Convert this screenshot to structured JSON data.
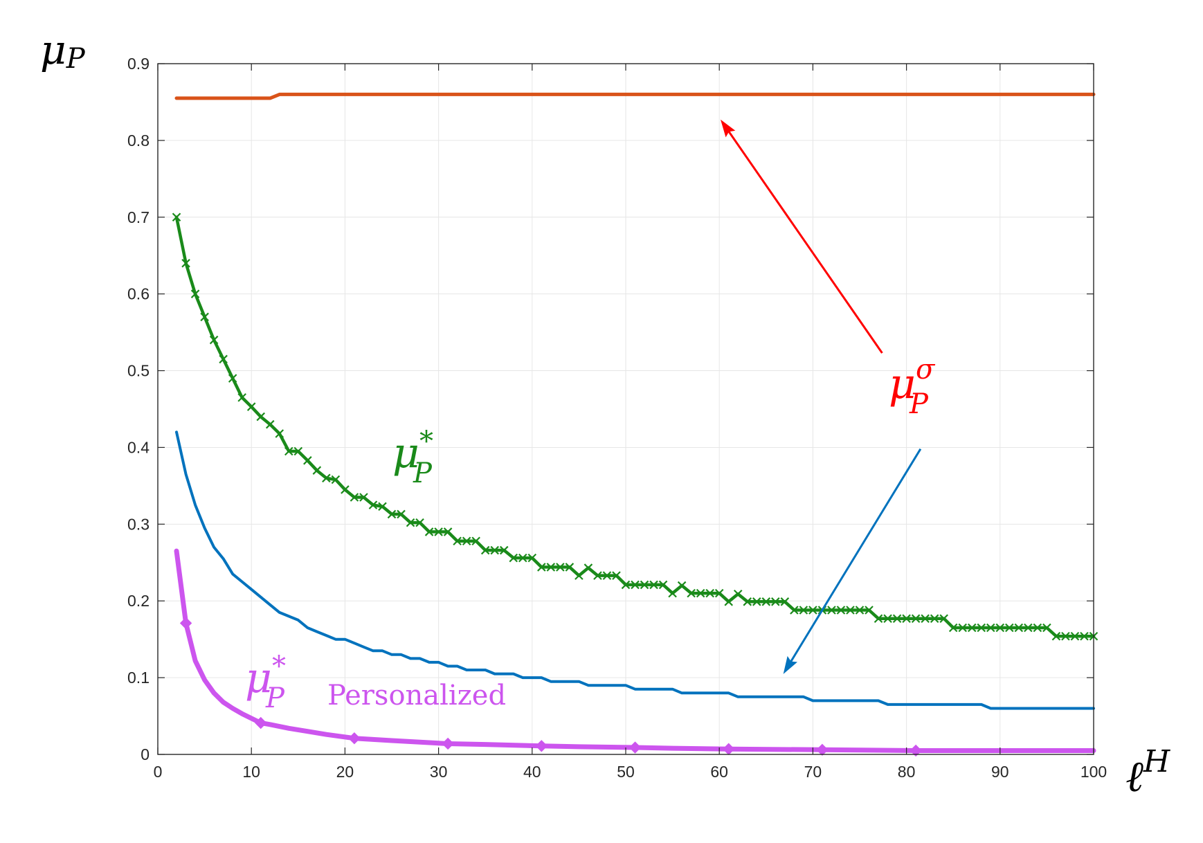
{
  "chart_data": {
    "type": "line",
    "xlabel": "ℓ",
    "xlabel_sup": "H",
    "ylabel": "μ",
    "ylabel_sub": "P",
    "xlim": [
      0,
      100
    ],
    "ylim": [
      0,
      0.9
    ],
    "x_ticks": [
      "0",
      "10",
      "20",
      "30",
      "40",
      "50",
      "60",
      "70",
      "80",
      "90",
      "100"
    ],
    "y_ticks": [
      "0",
      "0.1",
      "0.2",
      "0.3",
      "0.4",
      "0.5",
      "0.6",
      "0.7",
      "0.8",
      "0.9"
    ],
    "grid": true,
    "colors": {
      "orange": "#D95319",
      "green": "#1A8A1A",
      "blue": "#0072BD",
      "magenta": "#CC55EE",
      "red": "#FF0000"
    },
    "series": [
      {
        "color": "orange",
        "points": [
          [
            2,
            0.855
          ],
          [
            12,
            0.855
          ],
          [
            13,
            0.86
          ],
          [
            100,
            0.86
          ]
        ]
      },
      {
        "color": "green",
        "marker": "x",
        "points": [
          [
            2,
            0.7
          ],
          [
            3,
            0.64
          ],
          [
            4,
            0.6
          ],
          [
            5,
            0.57
          ],
          [
            6,
            0.54
          ],
          [
            7,
            0.515
          ],
          [
            8,
            0.49
          ],
          [
            9,
            0.465
          ],
          [
            10,
            0.453
          ],
          [
            11,
            0.44
          ],
          [
            12,
            0.43
          ],
          [
            13,
            0.418
          ],
          [
            14,
            0.395
          ],
          [
            15,
            0.395
          ],
          [
            16,
            0.383
          ],
          [
            17,
            0.37
          ],
          [
            18,
            0.36
          ],
          [
            19,
            0.358
          ],
          [
            20,
            0.345
          ],
          [
            21,
            0.335
          ],
          [
            22,
            0.335
          ],
          [
            23,
            0.325
          ],
          [
            24,
            0.323
          ],
          [
            25,
            0.313
          ],
          [
            26,
            0.313
          ],
          [
            27,
            0.302
          ],
          [
            28,
            0.302
          ],
          [
            29,
            0.29
          ],
          [
            30,
            0.29
          ],
          [
            31,
            0.29
          ],
          [
            32,
            0.278
          ],
          [
            33,
            0.278
          ],
          [
            34,
            0.278
          ],
          [
            35,
            0.266
          ],
          [
            36,
            0.266
          ],
          [
            37,
            0.266
          ],
          [
            38,
            0.256
          ],
          [
            39,
            0.256
          ],
          [
            40,
            0.256
          ],
          [
            41,
            0.244
          ],
          [
            42,
            0.244
          ],
          [
            43,
            0.244
          ],
          [
            44,
            0.244
          ],
          [
            45,
            0.233
          ],
          [
            46,
            0.243
          ],
          [
            47,
            0.233
          ],
          [
            48,
            0.233
          ],
          [
            49,
            0.233
          ],
          [
            50,
            0.221
          ],
          [
            51,
            0.221
          ],
          [
            52,
            0.221
          ],
          [
            53,
            0.221
          ],
          [
            54,
            0.221
          ],
          [
            55,
            0.21
          ],
          [
            56,
            0.22
          ],
          [
            57,
            0.21
          ],
          [
            58,
            0.21
          ],
          [
            59,
            0.21
          ],
          [
            60,
            0.21
          ],
          [
            61,
            0.199
          ],
          [
            62,
            0.209
          ],
          [
            63,
            0.199
          ],
          [
            64,
            0.199
          ],
          [
            65,
            0.199
          ],
          [
            66,
            0.199
          ],
          [
            67,
            0.199
          ],
          [
            68,
            0.188
          ],
          [
            69,
            0.188
          ],
          [
            70,
            0.188
          ],
          [
            71,
            0.188
          ],
          [
            72,
            0.188
          ],
          [
            73,
            0.188
          ],
          [
            74,
            0.188
          ],
          [
            75,
            0.188
          ],
          [
            76,
            0.188
          ],
          [
            77,
            0.177
          ],
          [
            78,
            0.177
          ],
          [
            79,
            0.177
          ],
          [
            80,
            0.177
          ],
          [
            81,
            0.177
          ],
          [
            82,
            0.177
          ],
          [
            83,
            0.177
          ],
          [
            84,
            0.177
          ],
          [
            85,
            0.165
          ],
          [
            86,
            0.165
          ],
          [
            87,
            0.165
          ],
          [
            88,
            0.165
          ],
          [
            89,
            0.165
          ],
          [
            90,
            0.165
          ],
          [
            91,
            0.165
          ],
          [
            92,
            0.165
          ],
          [
            93,
            0.165
          ],
          [
            94,
            0.165
          ],
          [
            95,
            0.165
          ],
          [
            96,
            0.154
          ],
          [
            97,
            0.154
          ],
          [
            98,
            0.154
          ],
          [
            99,
            0.154
          ],
          [
            100,
            0.154
          ]
        ]
      },
      {
        "color": "blue",
        "points": [
          [
            2,
            0.42
          ],
          [
            3,
            0.365
          ],
          [
            4,
            0.325
          ],
          [
            5,
            0.295
          ],
          [
            6,
            0.27
          ],
          [
            7,
            0.255
          ],
          [
            8,
            0.235
          ],
          [
            9,
            0.225
          ],
          [
            10,
            0.215
          ],
          [
            11,
            0.205
          ],
          [
            12,
            0.195
          ],
          [
            13,
            0.185
          ],
          [
            14,
            0.18
          ],
          [
            15,
            0.175
          ],
          [
            16,
            0.165
          ],
          [
            17,
            0.16
          ],
          [
            18,
            0.155
          ],
          [
            19,
            0.15
          ],
          [
            20,
            0.15
          ],
          [
            21,
            0.145
          ],
          [
            22,
            0.14
          ],
          [
            23,
            0.135
          ],
          [
            24,
            0.135
          ],
          [
            25,
            0.13
          ],
          [
            26,
            0.13
          ],
          [
            27,
            0.125
          ],
          [
            28,
            0.125
          ],
          [
            29,
            0.12
          ],
          [
            30,
            0.12
          ],
          [
            31,
            0.115
          ],
          [
            32,
            0.115
          ],
          [
            33,
            0.11
          ],
          [
            34,
            0.11
          ],
          [
            35,
            0.11
          ],
          [
            36,
            0.105
          ],
          [
            37,
            0.105
          ],
          [
            38,
            0.105
          ],
          [
            39,
            0.1
          ],
          [
            40,
            0.1
          ],
          [
            41,
            0.1
          ],
          [
            42,
            0.095
          ],
          [
            43,
            0.095
          ],
          [
            44,
            0.095
          ],
          [
            45,
            0.095
          ],
          [
            46,
            0.09
          ],
          [
            47,
            0.09
          ],
          [
            48,
            0.09
          ],
          [
            49,
            0.09
          ],
          [
            50,
            0.09
          ],
          [
            51,
            0.085
          ],
          [
            52,
            0.085
          ],
          [
            53,
            0.085
          ],
          [
            54,
            0.085
          ],
          [
            55,
            0.085
          ],
          [
            56,
            0.08
          ],
          [
            57,
            0.08
          ],
          [
            58,
            0.08
          ],
          [
            59,
            0.08
          ],
          [
            60,
            0.08
          ],
          [
            61,
            0.08
          ],
          [
            62,
            0.075
          ],
          [
            63,
            0.075
          ],
          [
            64,
            0.075
          ],
          [
            65,
            0.075
          ],
          [
            66,
            0.075
          ],
          [
            67,
            0.075
          ],
          [
            68,
            0.075
          ],
          [
            69,
            0.075
          ],
          [
            70,
            0.07
          ],
          [
            71,
            0.07
          ],
          [
            72,
            0.07
          ],
          [
            73,
            0.07
          ],
          [
            74,
            0.07
          ],
          [
            75,
            0.07
          ],
          [
            76,
            0.07
          ],
          [
            77,
            0.07
          ],
          [
            78,
            0.065
          ],
          [
            79,
            0.065
          ],
          [
            80,
            0.065
          ],
          [
            81,
            0.065
          ],
          [
            82,
            0.065
          ],
          [
            83,
            0.065
          ],
          [
            84,
            0.065
          ],
          [
            85,
            0.065
          ],
          [
            86,
            0.065
          ],
          [
            87,
            0.065
          ],
          [
            88,
            0.065
          ],
          [
            89,
            0.06
          ],
          [
            90,
            0.06
          ],
          [
            95,
            0.06
          ],
          [
            100,
            0.06
          ]
        ]
      },
      {
        "color": "magenta",
        "marker": "diamond",
        "marker_x": [
          3,
          11,
          21,
          31,
          41,
          51,
          61,
          71,
          81
        ],
        "points": [
          [
            2,
            0.265
          ],
          [
            3,
            0.171
          ],
          [
            4,
            0.122
          ],
          [
            5,
            0.097
          ],
          [
            6,
            0.08
          ],
          [
            7,
            0.068
          ],
          [
            8,
            0.06
          ],
          [
            9,
            0.053
          ],
          [
            10,
            0.047
          ],
          [
            11,
            0.041
          ],
          [
            12,
            0.039
          ],
          [
            14,
            0.034
          ],
          [
            16,
            0.03
          ],
          [
            18,
            0.026
          ],
          [
            21,
            0.021
          ],
          [
            25,
            0.018
          ],
          [
            31,
            0.014
          ],
          [
            35,
            0.013
          ],
          [
            41,
            0.011
          ],
          [
            45,
            0.01
          ],
          [
            51,
            0.009
          ],
          [
            55,
            0.008
          ],
          [
            61,
            0.007
          ],
          [
            71,
            0.006
          ],
          [
            81,
            0.005
          ],
          [
            90,
            0.005
          ],
          [
            100,
            0.005
          ]
        ]
      }
    ],
    "annotations": {
      "sigma_label": {
        "base": "μ",
        "sub": "P",
        "sup": "σ",
        "color": "red"
      },
      "green_label": {
        "base": "μ",
        "sub": "P",
        "sup": "*",
        "color": "green"
      },
      "magenta_label": {
        "base": "μ",
        "sub": "P",
        "sup": "*",
        "text": "Personalized",
        "color": "magenta"
      },
      "arrows": [
        {
          "color": "red",
          "from": [
            77.4,
            0.523
          ],
          "to": [
            60.2,
            0.826
          ]
        },
        {
          "color": "blue",
          "from": [
            81.5,
            0.398
          ],
          "to": [
            66.9,
            0.106
          ]
        }
      ]
    }
  }
}
